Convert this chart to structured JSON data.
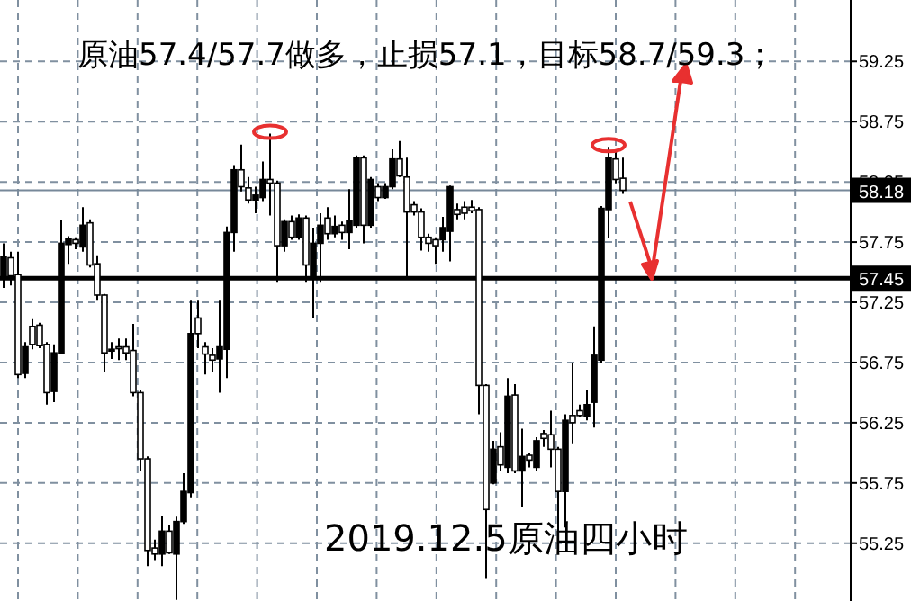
{
  "chart_data": {
    "type": "candlestick",
    "annotations": [
      "原油57.4/57.7做多，止损57.1，目标58.7/59.3；",
      "2019.12.5原油四小时"
    ],
    "categories": [
      null,
      null,
      null,
      null,
      null,
      null,
      null,
      null,
      null,
      null,
      null,
      null,
      null,
      null,
      null,
      null,
      null,
      null,
      null,
      null,
      null,
      null,
      null,
      null,
      null,
      null,
      null,
      null,
      null,
      null,
      null,
      null,
      null,
      null,
      null,
      null,
      null,
      null,
      null,
      null,
      null,
      null,
      null,
      null,
      null,
      null,
      null,
      null,
      null,
      null,
      null,
      null,
      null,
      null,
      null,
      null,
      null,
      null,
      null,
      null,
      null,
      null,
      null,
      null,
      null,
      null,
      null,
      null,
      null,
      null,
      null,
      null,
      null,
      null,
      null,
      null,
      null,
      null,
      null,
      null,
      null,
      null,
      null,
      null,
      null,
      null,
      null,
      null,
      null,
      null,
      null,
      null,
      null,
      null,
      null,
      null,
      null,
      null,
      null,
      null,
      null,
      null,
      null,
      null,
      null,
      null,
      null,
      null,
      null,
      null,
      null,
      null,
      null,
      null,
      null,
      null,
      null,
      null
    ],
    "ohlc": [
      [
        57.46,
        57.74,
        57.37,
        57.63
      ],
      [
        57.62,
        57.67,
        57.39,
        57.47
      ],
      [
        57.48,
        57.67,
        56.62,
        56.65
      ],
      [
        56.66,
        56.92,
        56.62,
        56.88
      ],
      [
        57.05,
        57.11,
        56.86,
        56.9
      ],
      [
        57.06,
        57.08,
        56.87,
        56.89
      ],
      [
        56.9,
        56.92,
        56.4,
        56.5
      ],
      [
        56.51,
        56.9,
        56.42,
        56.83
      ],
      [
        56.83,
        57.93,
        56.82,
        57.74
      ],
      [
        57.73,
        57.8,
        57.57,
        57.78
      ],
      [
        57.77,
        57.79,
        57.69,
        57.74
      ],
      [
        57.71,
        58.04,
        57.67,
        57.89
      ],
      [
        57.91,
        57.94,
        57.54,
        57.56
      ],
      [
        57.57,
        57.64,
        57.27,
        57.31
      ],
      [
        57.31,
        57.32,
        56.67,
        56.83
      ],
      [
        56.85,
        56.92,
        56.78,
        56.86
      ],
      [
        56.88,
        56.95,
        56.77,
        56.87
      ],
      [
        56.88,
        56.95,
        56.77,
        56.83
      ],
      [
        56.85,
        57.07,
        56.47,
        56.5
      ],
      [
        56.5,
        56.52,
        55.85,
        55.95
      ],
      [
        55.95,
        55.97,
        55.06,
        55.19
      ],
      [
        55.21,
        55.28,
        55.11,
        55.16
      ],
      [
        55.16,
        55.48,
        55.06,
        55.35
      ],
      [
        55.35,
        55.4,
        55.16,
        55.17
      ],
      [
        55.16,
        55.47,
        54.78,
        55.43
      ],
      [
        55.43,
        55.83,
        55.41,
        55.68
      ],
      [
        55.67,
        57.27,
        55.63,
        56.99
      ],
      [
        57.12,
        57.27,
        56.87,
        56.99
      ],
      [
        56.88,
        56.92,
        56.65,
        56.82
      ],
      [
        56.81,
        56.87,
        56.67,
        56.77
      ],
      [
        56.78,
        57.27,
        56.5,
        56.88
      ],
      [
        56.86,
        57.88,
        56.62,
        57.83
      ],
      [
        57.83,
        58.39,
        57.67,
        58.35
      ],
      [
        58.35,
        58.56,
        58.17,
        58.21
      ],
      [
        58.2,
        58.29,
        58.07,
        58.1
      ],
      [
        58.1,
        58.21,
        57.99,
        58.14
      ],
      [
        58.12,
        58.42,
        58.09,
        58.27
      ],
      [
        58.27,
        58.65,
        57.97,
        58.24
      ],
      [
        58.24,
        58.26,
        57.42,
        57.72
      ],
      [
        57.72,
        57.94,
        57.67,
        57.92
      ],
      [
        57.92,
        57.97,
        57.77,
        57.79
      ],
      [
        57.79,
        57.98,
        57.77,
        57.95
      ],
      [
        57.95,
        57.97,
        57.42,
        57.56
      ],
      [
        57.47,
        57.87,
        57.12,
        57.74
      ],
      [
        57.74,
        57.99,
        57.42,
        57.89
      ],
      [
        57.95,
        58.04,
        57.77,
        57.82
      ],
      [
        57.82,
        57.97,
        57.79,
        57.88
      ],
      [
        57.89,
        57.92,
        57.77,
        57.83
      ],
      [
        57.83,
        58.19,
        57.69,
        57.93
      ],
      [
        57.89,
        58.47,
        57.87,
        58.45
      ],
      [
        58.45,
        58.47,
        57.74,
        57.89
      ],
      [
        57.89,
        58.29,
        57.87,
        58.27
      ],
      [
        58.21,
        58.24,
        58.09,
        58.12
      ],
      [
        58.12,
        58.24,
        58.11,
        58.21
      ],
      [
        58.21,
        58.52,
        58.19,
        58.44
      ],
      [
        58.44,
        58.59,
        58.29,
        58.3
      ],
      [
        58.29,
        58.45,
        57.44,
        58.0
      ],
      [
        58.06,
        58.09,
        57.97,
        58.0
      ],
      [
        58.0,
        58.03,
        57.68,
        57.79
      ],
      [
        57.79,
        57.82,
        57.67,
        57.74
      ],
      [
        57.77,
        57.79,
        57.57,
        57.72
      ],
      [
        57.77,
        57.96,
        57.67,
        57.87
      ],
      [
        57.84,
        58.22,
        57.59,
        58.21
      ],
      [
        58.02,
        58.07,
        57.94,
        57.98
      ],
      [
        58.04,
        58.09,
        57.94,
        57.99
      ],
      [
        58.04,
        58.1,
        57.99,
        58.01
      ],
      [
        58.02,
        58.04,
        56.32,
        56.56
      ],
      [
        56.56,
        56.57,
        54.96,
        55.53
      ],
      [
        55.75,
        56.1,
        55.74,
        56.03
      ],
      [
        56.05,
        56.17,
        55.85,
        55.9
      ],
      [
        55.88,
        56.62,
        55.83,
        56.47
      ],
      [
        56.48,
        56.57,
        55.83,
        55.85
      ],
      [
        55.85,
        56.2,
        55.55,
        55.97
      ],
      [
        55.98,
        56.0,
        55.88,
        55.94
      ],
      [
        55.88,
        56.13,
        55.85,
        56.1
      ],
      [
        56.16,
        56.19,
        56.05,
        56.12
      ],
      [
        56.15,
        56.35,
        55.88,
        56.03
      ],
      [
        56.03,
        56.05,
        55.3,
        55.68
      ],
      [
        55.68,
        56.32,
        55.38,
        56.27
      ],
      [
        56.31,
        56.75,
        56.08,
        56.25
      ],
      [
        56.35,
        56.4,
        56.3,
        56.31
      ],
      [
        56.3,
        56.52,
        56.27,
        56.4
      ],
      [
        56.42,
        57.05,
        56.21,
        56.81
      ],
      [
        56.77,
        58.05,
        56.75,
        58.03
      ],
      [
        58.02,
        58.54,
        57.78,
        58.45
      ],
      [
        58.44,
        58.51,
        58.24,
        58.27
      ],
      [
        58.28,
        58.45,
        58.15,
        58.18
      ],
      null,
      null,
      null,
      null,
      null,
      null,
      null,
      null,
      null,
      null,
      null,
      null,
      null,
      null,
      null,
      null,
      null,
      null,
      null,
      null,
      null,
      null,
      null,
      null,
      null,
      null,
      null,
      null,
      null,
      null,
      null
    ],
    "ylim": [
      54.77,
      59.76
    ],
    "yticks": [
      55.25,
      55.75,
      56.25,
      56.75,
      57.25,
      57.75,
      58.25,
      58.75,
      59.25
    ],
    "grid": true,
    "ref_lines": [
      {
        "axis": "y",
        "value": 58.18,
        "label": "58.18",
        "color": "#778899"
      },
      {
        "axis": "y",
        "value": 57.45,
        "label": "57.45",
        "color": "#000000"
      }
    ]
  }
}
